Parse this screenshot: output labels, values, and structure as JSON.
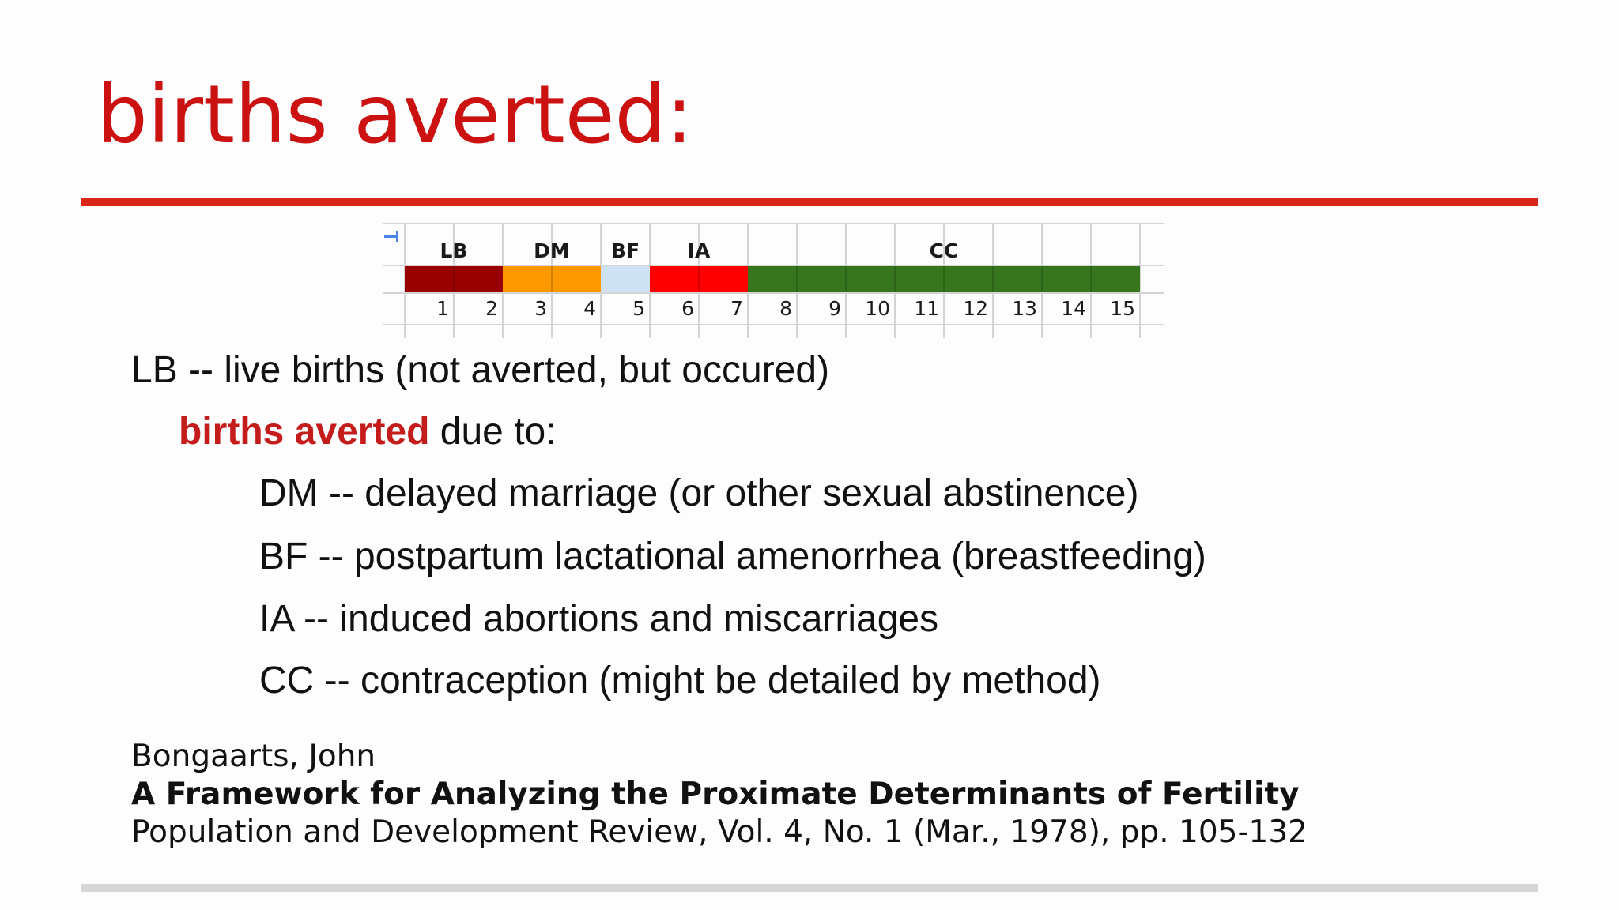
{
  "slide": {
    "title": "births averted:",
    "accent_color": "#cc1111"
  },
  "strip": {
    "segments": [
      {
        "label": "LB",
        "color": "#990000",
        "cells": 2
      },
      {
        "label": "DM",
        "color": "#ff9900",
        "cells": 2
      },
      {
        "label": "BF",
        "color": "#cfe2f3",
        "cells": 1
      },
      {
        "label": "IA",
        "color": "#ff0000",
        "cells": 2
      },
      {
        "label": "CC",
        "color": "#38761d",
        "cells": 8
      }
    ],
    "numbers": [
      "1",
      "2",
      "3",
      "4",
      "5",
      "6",
      "7",
      "8",
      "9",
      "10",
      "11",
      "12",
      "13",
      "14",
      "15"
    ]
  },
  "definitions": {
    "lb": "LB -- live births (not averted, but occured)",
    "averted_highlight": "births averted",
    "averted_rest": " due to:",
    "items": [
      "DM -- delayed marriage (or other sexual abstinence)",
      "BF -- postpartum lactational amenorrhea (breastfeeding)",
      "IA -- induced abortions and miscarriages",
      "CC -- contraception (might be detailed by method)"
    ]
  },
  "reference": {
    "author": "Bongaarts, John",
    "title": "A Framework for Analyzing the Proximate Determinants of Fertility",
    "source": "Population and Development Review, Vol. 4, No. 1 (Mar., 1978), pp. 105-132"
  }
}
